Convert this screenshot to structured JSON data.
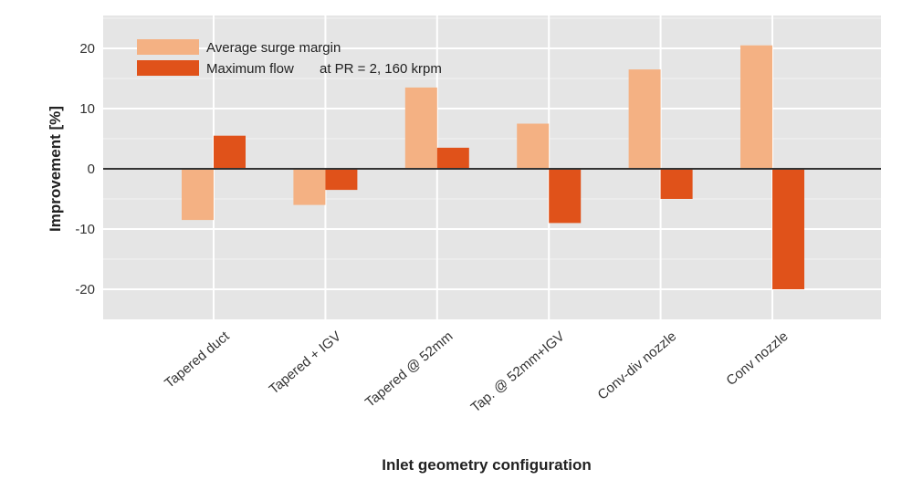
{
  "chart_data": {
    "type": "bar",
    "title": "",
    "xlabel": "Inlet geometry  configuration",
    "ylabel": "Improvement  [%]",
    "ylim": [
      -25,
      25
    ],
    "yticks": [
      -20,
      -10,
      0,
      10,
      20
    ],
    "grid": true,
    "legend_position": "top-left",
    "annotation": "at PR = 2, 160 krpm",
    "categories": [
      "Tapered  duct",
      "Tapered  + IGV",
      "Tapered  @ 52mm",
      "Tap. @ 52mm+IGV",
      "Conv-div  nozzle",
      "Conv  nozzle"
    ],
    "series": [
      {
        "name": "Average surge margin",
        "color": "#f4b183",
        "values": [
          -8.5,
          -6,
          13.5,
          7.5,
          16.5,
          20.5
        ]
      },
      {
        "name": "Maximum flow",
        "color": "#e0521a",
        "values": [
          5.5,
          -3.5,
          3.5,
          -9,
          -5,
          -20
        ]
      }
    ]
  }
}
